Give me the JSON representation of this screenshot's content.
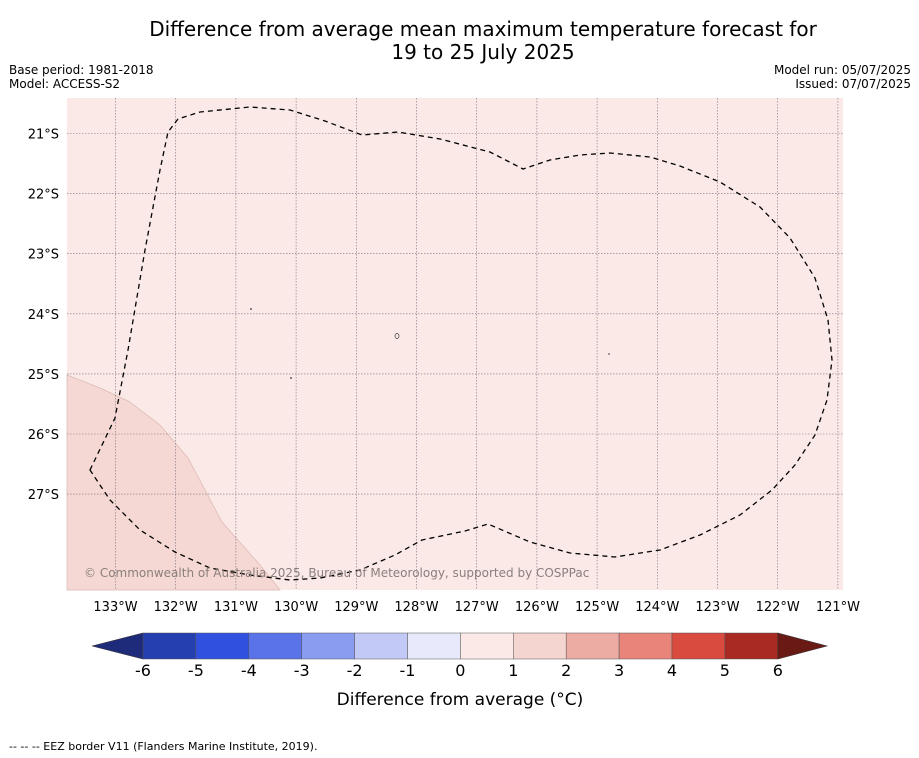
{
  "title": {
    "line1": "Difference from average mean maximum temperature forecast for",
    "line2": "19 to 25 July 2025"
  },
  "meta": {
    "base_period": "Base period: 1981-2018",
    "model": "Model: ACCESS-S2",
    "model_run": "Model run: 05/07/2025",
    "issued": "Issued: 07/07/2025"
  },
  "map": {
    "lon_labels": [
      "133°W",
      "132°W",
      "131°W",
      "130°W",
      "129°W",
      "128°W",
      "127°W",
      "126°W",
      "125°W",
      "124°W",
      "123°W",
      "122°W",
      "121°W"
    ],
    "lat_labels": [
      "21°S",
      "22°S",
      "23°S",
      "24°S",
      "25°S",
      "26°S",
      "27°S"
    ],
    "credit": "© Commonwealth of Australia 2025, Bureau of Meteorology, supported by COSPPac",
    "background_color": "#fbe9e7",
    "warm_area_color": "#f5d8d3"
  },
  "legend": {
    "tick_labels": [
      "-6",
      "-5",
      "-4",
      "-3",
      "-2",
      "-1",
      "0",
      "1",
      "2",
      "3",
      "4",
      "5",
      "6"
    ],
    "title": "Difference from average (°C)",
    "colors": [
      "#1e2a7a",
      "#2440b0",
      "#3051e0",
      "#5a73e8",
      "#8a9cf0",
      "#c2c9f7",
      "#e8eafb",
      "#fbe9e7",
      "#f5d5d0",
      "#ecaca4",
      "#e8847a",
      "#d94a3f",
      "#a82a22",
      "#6a1a15"
    ]
  },
  "footer": "--  --  -- EEZ border V11 (Flanders Marine Institute, 2019)."
}
